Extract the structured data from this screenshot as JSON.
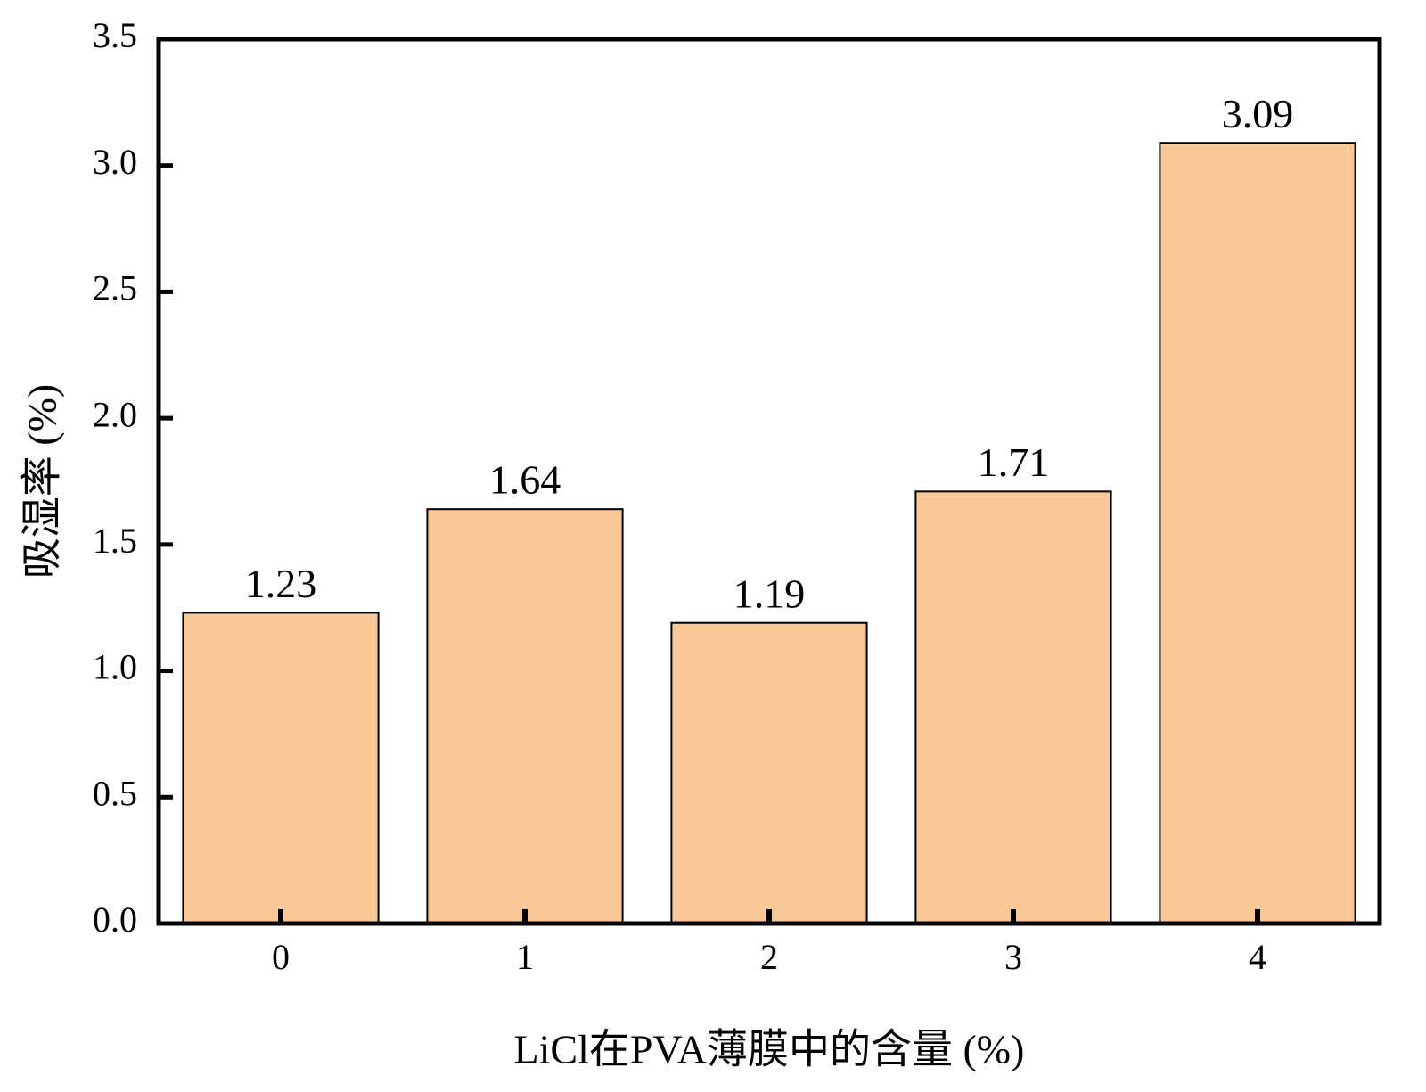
{
  "chart_data": {
    "type": "bar",
    "x_label": "LiCl在PVA薄膜中的含量 (%)",
    "y_label": "吸湿率 (%)",
    "categories": [
      "0",
      "1",
      "2",
      "3",
      "4"
    ],
    "values": [
      1.23,
      1.64,
      1.19,
      1.71,
      3.09
    ],
    "color": "#f9c898",
    "ylim": [
      0,
      3.5
    ],
    "yticks": [
      {
        "value": 0,
        "label": "0.0"
      },
      0.5,
      {
        "value": 1,
        "label": "1.0"
      },
      1.5,
      {
        "value": 2,
        "label": "2.0"
      },
      2.5,
      {
        "value": 3,
        "label": "3.0"
      },
      3.5
    ],
    "grid": false
  }
}
